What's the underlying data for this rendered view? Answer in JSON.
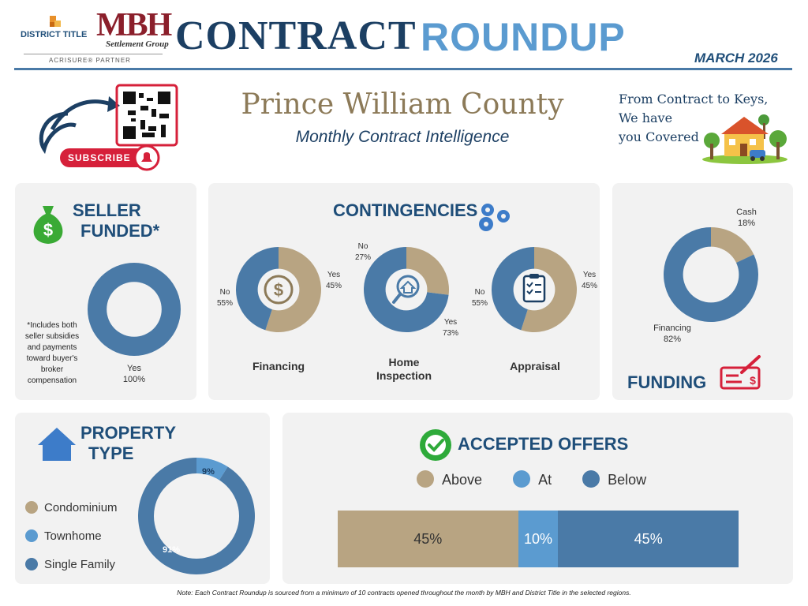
{
  "header": {
    "brand_district": "DISTRICT TITLE",
    "brand_mbh": "MBH",
    "brand_settlement": "Settlement Group",
    "brand_partner": "ACRISURE® PARTNER",
    "title_left": "CONTRACT",
    "title_right": "ROUNDUP",
    "date": "MARCH 2026"
  },
  "banner": {
    "subscribe_label": "SUBSCRIBE",
    "county": "Prince William County",
    "subtitle": "Monthly Contract Intelligence",
    "tagline_line1": "From Contract to Keys,",
    "tagline_line2": "We have",
    "tagline_line3": "you Covered"
  },
  "seller_funded": {
    "title_line1": "SELLER",
    "title_line2": "FUNDED*",
    "footnote": [
      "*Includes both",
      "seller subsidies",
      "and payments",
      "toward buyer's",
      "broker",
      "compensation"
    ],
    "yes_label": "Yes",
    "yes_pct": "100%"
  },
  "contingencies": {
    "title": "CONTINGENCIES",
    "financing": {
      "label": "Financing",
      "no_label": "No",
      "no_pct": "55%",
      "yes_label": "Yes",
      "yes_pct": "45%"
    },
    "inspection": {
      "label_line1": "Home",
      "label_line2": "Inspection",
      "no_label": "No",
      "no_pct": "27%",
      "yes_label": "Yes",
      "yes_pct": "73%"
    },
    "appraisal": {
      "label": "Appraisal",
      "no_label": "No",
      "no_pct": "55%",
      "yes_label": "Yes",
      "yes_pct": "45%"
    }
  },
  "funding": {
    "title": "FUNDING",
    "cash_label": "Cash",
    "cash_pct": "18%",
    "financing_label": "Financing",
    "financing_pct": "82%"
  },
  "property_type": {
    "title_line1": "PROPERTY",
    "title_line2": "TYPE",
    "legend": [
      "Condominium",
      "Townhome",
      "Single Family"
    ],
    "townhome_pct": "9%",
    "single_family_pct": "91%"
  },
  "accepted_offers": {
    "title": "ACCEPTED OFFERS",
    "legend": [
      "Above",
      "At",
      "Below"
    ],
    "above_pct": "45%",
    "at_pct": "10%",
    "below_pct": "45%"
  },
  "footer": {
    "note": "Note: Each Contract Roundup is sourced from a minimum of 10 contracts opened throughout the month by MBH and District Title in the selected regions."
  },
  "colors": {
    "tan": "#b8a482",
    "light_blue": "#5b9bd0",
    "steel_blue": "#4a7aa7",
    "dark_blue": "#1f4e79",
    "navy": "#1c3f63",
    "red": "#d6203a",
    "green": "#2eaa3a"
  },
  "chart_data": [
    {
      "type": "pie",
      "title": "SELLER FUNDED*",
      "categories": [
        "Yes"
      ],
      "values": [
        100
      ]
    },
    {
      "type": "pie",
      "title": "Financing",
      "categories": [
        "No",
        "Yes"
      ],
      "values": [
        55,
        45
      ]
    },
    {
      "type": "pie",
      "title": "Home Inspection",
      "categories": [
        "No",
        "Yes"
      ],
      "values": [
        27,
        73
      ]
    },
    {
      "type": "pie",
      "title": "Appraisal",
      "categories": [
        "No",
        "Yes"
      ],
      "values": [
        55,
        45
      ]
    },
    {
      "type": "pie",
      "title": "FUNDING",
      "categories": [
        "Cash",
        "Financing"
      ],
      "values": [
        18,
        82
      ]
    },
    {
      "type": "pie",
      "title": "PROPERTY TYPE",
      "categories": [
        "Condominium",
        "Townhome",
        "Single Family"
      ],
      "values": [
        0,
        9,
        91
      ]
    },
    {
      "type": "bar",
      "title": "ACCEPTED OFFERS",
      "categories": [
        "Above",
        "At",
        "Below"
      ],
      "values": [
        45,
        10,
        45
      ]
    }
  ]
}
